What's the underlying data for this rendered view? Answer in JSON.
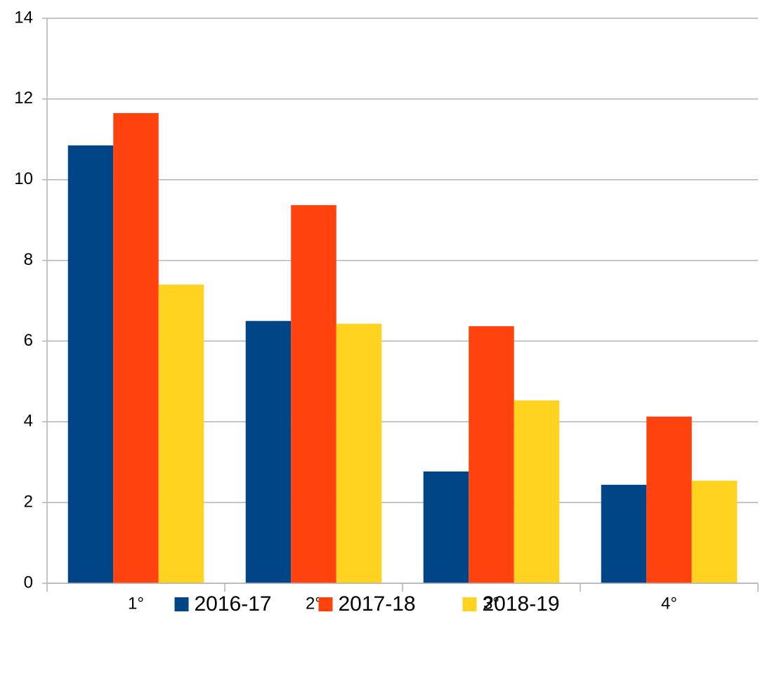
{
  "chart_data": {
    "type": "bar",
    "categories": [
      "1°",
      "2°",
      "3°",
      "4°"
    ],
    "series": [
      {
        "name": "2016-17",
        "color": "#004586",
        "values": [
          10.85,
          6.5,
          2.77,
          2.44
        ]
      },
      {
        "name": "2017-18",
        "color": "#ff420e",
        "values": [
          11.65,
          9.37,
          6.37,
          4.13
        ]
      },
      {
        "name": "2018-19",
        "color": "#ffd320",
        "values": [
          7.4,
          6.43,
          4.53,
          2.54
        ]
      }
    ],
    "ylim": [
      0,
      14
    ],
    "yticks": [
      0,
      2,
      4,
      6,
      8,
      10,
      12,
      14
    ],
    "grid": true,
    "legend": "bottom"
  }
}
